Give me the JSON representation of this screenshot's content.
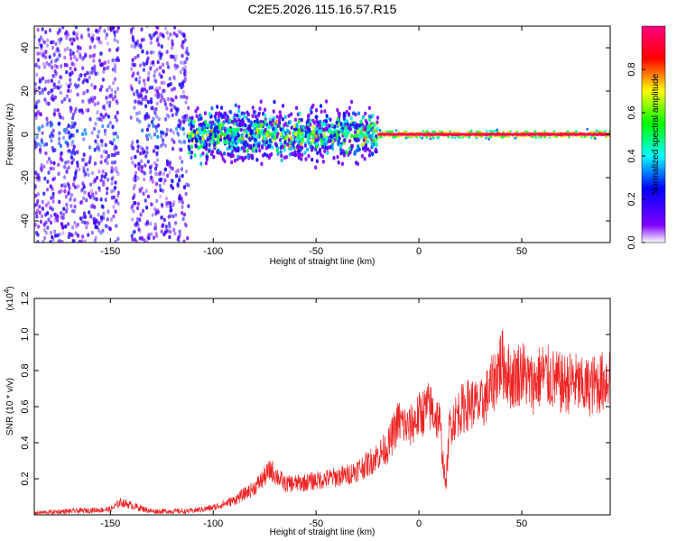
{
  "figure_title": "C2E5.2026.115.16.57.R15",
  "chart_data": [
    {
      "type": "heatmap",
      "title": "C2E5.2026.115.16.57.R15",
      "xlabel": "Height of straight line (km)",
      "ylabel": "Frequency (Hz)",
      "xlim": [
        -187,
        93
      ],
      "ylim": [
        -50,
        50
      ],
      "xticks": [
        -150,
        -100,
        -50,
        0,
        50
      ],
      "yticks": [
        -40,
        -20,
        0,
        20,
        40
      ],
      "colorbar": {
        "label": "Normalized spectral amplitude",
        "range": [
          0,
          1
        ],
        "ticks": [
          0.0,
          0.2,
          0.4,
          0.6,
          0.8
        ],
        "tick_labels": [
          "0.0",
          "0.2",
          "0.4",
          "0.6",
          "0.8"
        ],
        "colormap": [
          "#ffffff",
          "#8000ff",
          "#0000ff",
          "#00ffff",
          "#00ff00",
          "#ffff00",
          "#ff0000",
          "#ff0080"
        ]
      },
      "description_segments": [
        {
          "x_range": [
            -187,
            -112
          ],
          "freq_spread": 50,
          "amplitude": 0.15
        },
        {
          "x_range": [
            -112,
            -20
          ],
          "freq_spread": 10,
          "amplitude": 0.45
        },
        {
          "x_range": [
            -20,
            93
          ],
          "freq_spread": 2,
          "amplitude": 0.95
        }
      ]
    },
    {
      "type": "line",
      "xlabel": "Height of straight line (km)",
      "ylabel": "SNR (10 * v/v)",
      "exponent_label": "(x10",
      "exponent_power": "4",
      "exponent_close": ")",
      "xlim": [
        -187,
        93
      ],
      "ylim": [
        0,
        1.2
      ],
      "xticks": [
        -150,
        -100,
        -50,
        0,
        50
      ],
      "yticks": [
        0.2,
        0.4,
        0.6,
        0.8,
        1.0,
        1.2
      ],
      "ytick_labels": [
        "0.2",
        "0.4",
        "0.6",
        "0.8",
        "1.0",
        "1.2"
      ],
      "line_color": "#ee2222",
      "series": [
        {
          "name": "SNR",
          "x": [
            -187,
            -170,
            -150,
            -145,
            -130,
            -112,
            -100,
            -90,
            -80,
            -72,
            -65,
            -55,
            -45,
            -35,
            -25,
            -15,
            -10,
            -5,
            0,
            5,
            10,
            13,
            15,
            20,
            25,
            30,
            35,
            40,
            45,
            50,
            55,
            60,
            65,
            70,
            75,
            80,
            85,
            90,
            93
          ],
          "y": [
            0.01,
            0.02,
            0.03,
            0.07,
            0.02,
            0.02,
            0.04,
            0.08,
            0.15,
            0.25,
            0.17,
            0.18,
            0.2,
            0.22,
            0.28,
            0.38,
            0.52,
            0.48,
            0.55,
            0.6,
            0.52,
            0.15,
            0.5,
            0.58,
            0.62,
            0.6,
            0.7,
            0.85,
            0.75,
            0.8,
            0.72,
            0.78,
            0.75,
            0.72,
            0.74,
            0.7,
            0.72,
            0.74,
            0.78
          ]
        }
      ]
    }
  ]
}
